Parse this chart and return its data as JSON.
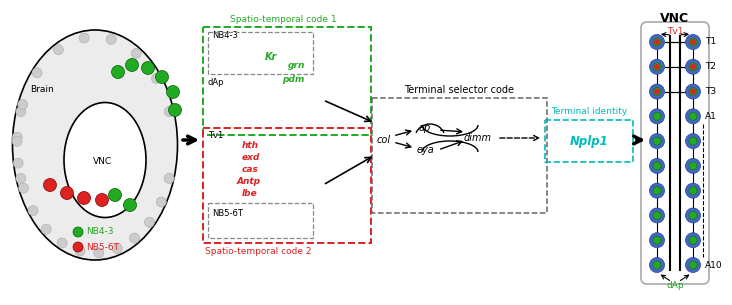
{
  "green": "#22AA22",
  "red": "#DD2222",
  "cyan": "#00BBBB",
  "black": "#000000",
  "gray": "#888888",
  "light_gray": "#CCCCCC",
  "bg": "#FFFFFF",
  "spatio1": "Spatio-temporal code 1",
  "spatio2": "Spatio-temporal code 2",
  "terminal_sel": "Terminal selector code",
  "terminal_id": "Terminal identity",
  "brain": "Brain",
  "vnc": "VNC",
  "nb43": "NB4-3",
  "nb56t": "NB5-6T",
  "dap": "dAp",
  "tv1": "Tv1",
  "kr": "Kr",
  "grn": "grn",
  "pdm": "pdm",
  "hth": "hth",
  "exd": "exd",
  "cas": "cas",
  "antp": "Antp",
  "lbe": "lbe",
  "col": "col",
  "ap": "ap",
  "eya": "eya",
  "dimm": "dimm",
  "nplp1": "Nplp1",
  "t1": "T1",
  "t2": "T2",
  "t3": "T3",
  "a1": "A1",
  "a10": "A10"
}
